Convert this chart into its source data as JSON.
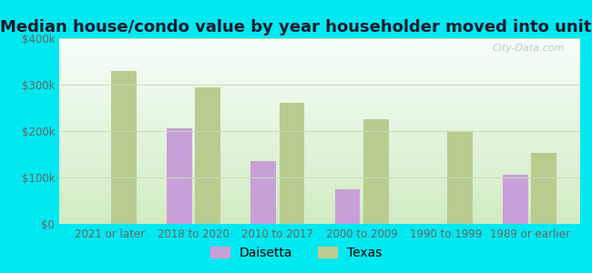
{
  "title": "Median house/condo value by year householder moved into unit",
  "categories": [
    "2021 or later",
    "2018 to 2020",
    "2010 to 2017",
    "2000 to 2009",
    "1990 to 1999",
    "1989 or earlier"
  ],
  "daisetta": [
    null,
    205000,
    135000,
    75000,
    null,
    105000
  ],
  "texas": [
    330000,
    295000,
    260000,
    225000,
    198000,
    152000
  ],
  "daisetta_color": "#c8a0d8",
  "texas_color": "#b8cc90",
  "background_outer": "#00e8f0",
  "background_inner_top": "#f5fffa",
  "background_inner_bottom": "#d8eec8",
  "ylim": [
    0,
    400000
  ],
  "yticks": [
    0,
    100000,
    200000,
    300000,
    400000
  ],
  "ytick_labels": [
    "$0",
    "$100k",
    "$200k",
    "$300k",
    "$400k"
  ],
  "legend_daisetta": "Daisetta",
  "legend_texas": "Texas",
  "watermark": "City-Data.com",
  "bar_width": 0.3,
  "title_fontsize": 13,
  "tick_fontsize": 8.5,
  "legend_fontsize": 10
}
